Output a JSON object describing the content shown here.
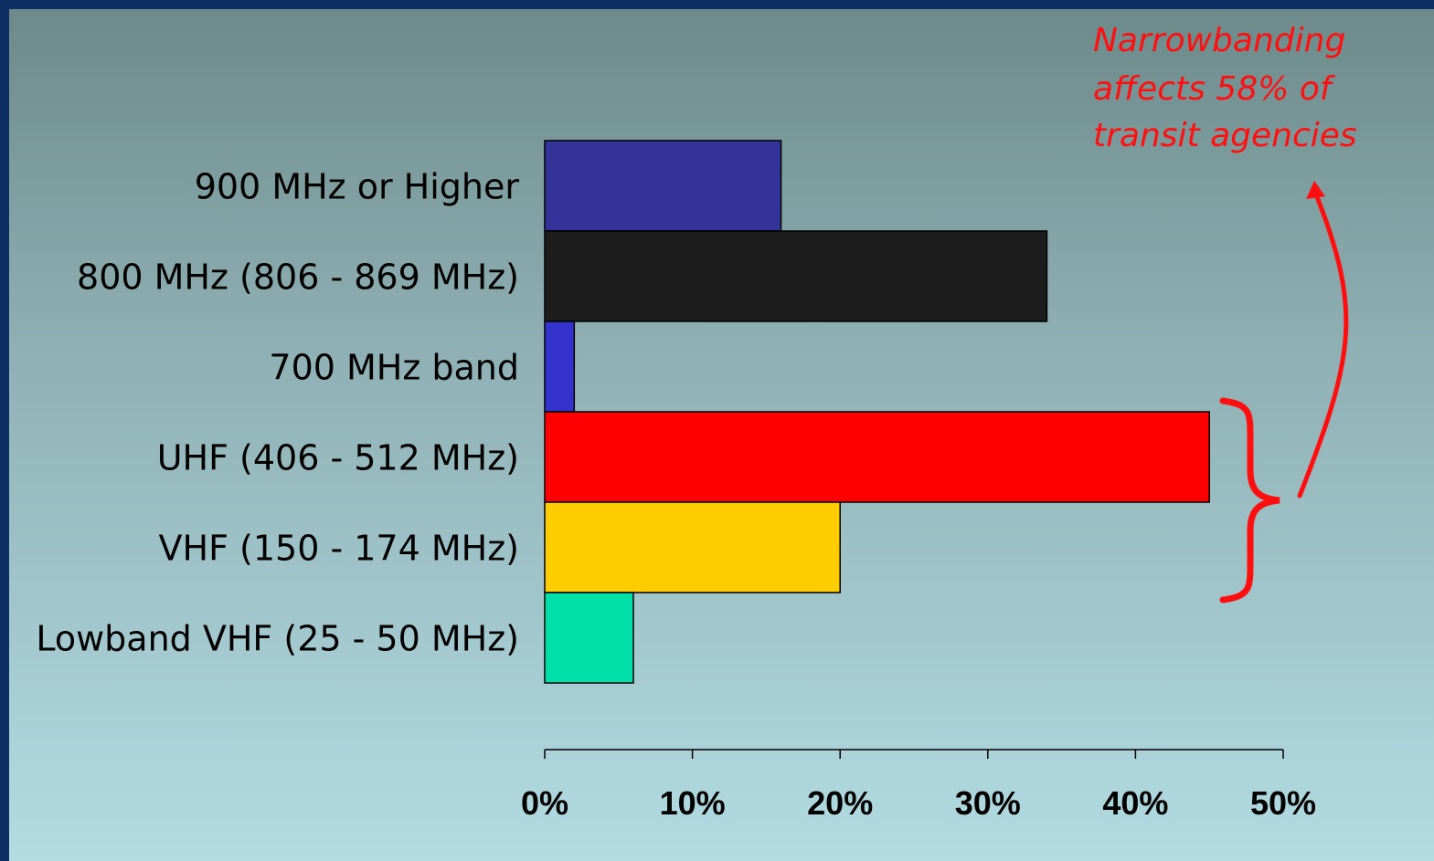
{
  "chart_data": {
    "type": "bar",
    "orientation": "horizontal",
    "categories": [
      "900 MHz or Higher",
      "800 MHz (806 - 869 MHz)",
      "700 MHz band",
      "UHF (406 - 512 MHz)",
      "VHF (150 - 174 MHz)",
      "Lowband VHF (25 - 50 MHz)"
    ],
    "values": [
      16,
      34,
      2,
      45,
      20,
      6
    ],
    "colors": [
      "#333399",
      "#1c1c1c",
      "#3333cc",
      "#ff0000",
      "#ffcc00",
      "#00e0a8"
    ],
    "xlim": [
      0,
      50
    ],
    "xticks": [
      0,
      10,
      20,
      30,
      40,
      50
    ],
    "xtick_labels": [
      "0%",
      "10%",
      "20%",
      "30%",
      "40%",
      "50%"
    ],
    "grid": false,
    "annotation": {
      "lines": [
        "Narrowbanding",
        "affects 58% of",
        "transit agencies"
      ],
      "color": "#ff1010",
      "brace_categories": [
        "UHF (406 - 512 MHz)",
        "VHF (150 - 174 MHz)"
      ]
    }
  },
  "colors": {
    "frame": "#0d2f63",
    "background_top": "#6d8a8a",
    "background_bottom": "#b2dce2",
    "bar_outline": "#000000"
  }
}
